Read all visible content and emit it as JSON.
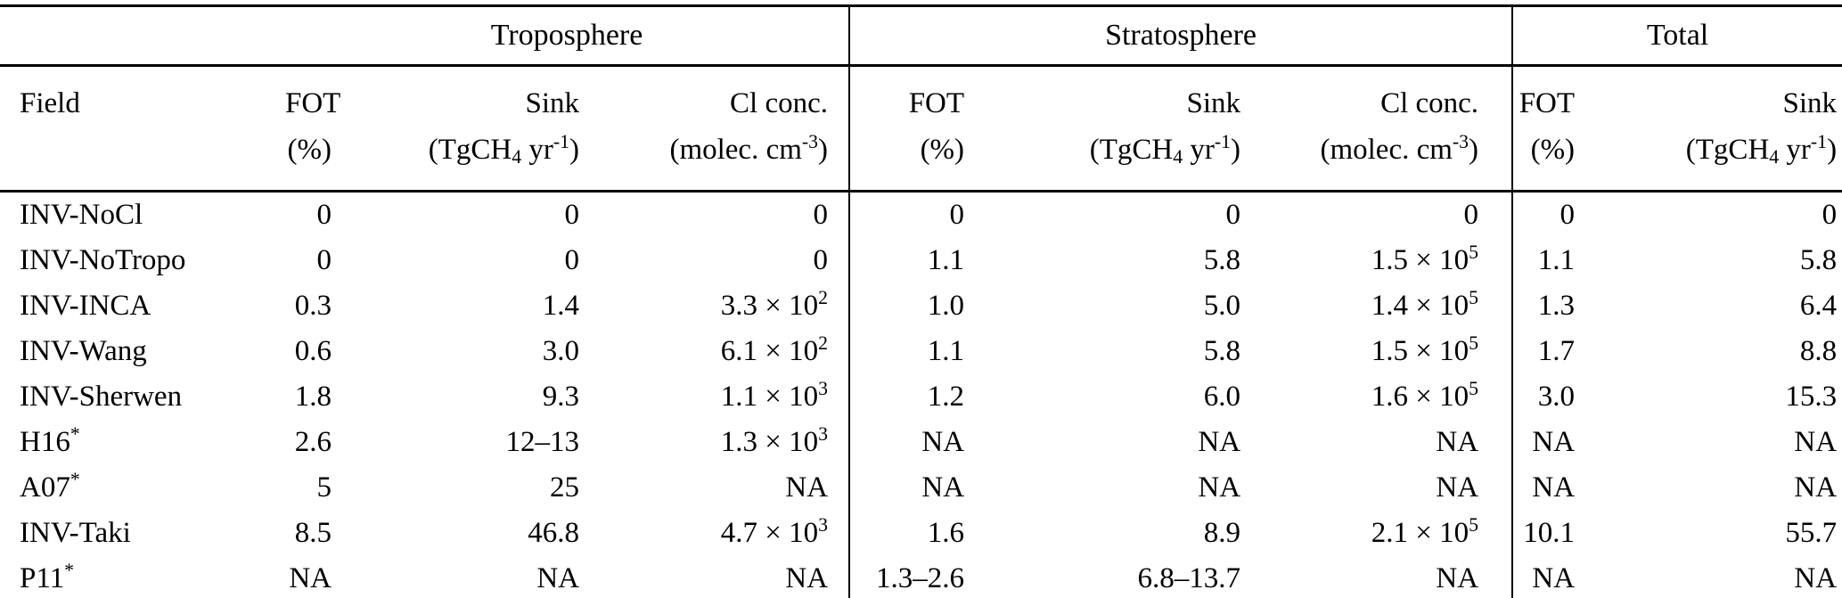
{
  "colors": {
    "background": "#ffffff",
    "text": "#000000",
    "rule": "#000000"
  },
  "table": {
    "groups": [
      {
        "label": "Troposphere",
        "span": 3
      },
      {
        "label": "Stratosphere",
        "span": 3
      },
      {
        "label": "Total",
        "span": 2
      }
    ],
    "columns": [
      {
        "label": "Field",
        "unit": ""
      },
      {
        "label": "FOT",
        "unit": "(%)"
      },
      {
        "label": "Sink",
        "unit": "(TgCH_4 yr^-1)"
      },
      {
        "label": "Cl conc.",
        "unit": "(molec. cm^-3)"
      },
      {
        "label": "FOT",
        "unit": "(%)"
      },
      {
        "label": "Sink",
        "unit": "(TgCH_4 yr^-1)"
      },
      {
        "label": "Cl conc.",
        "unit": "(molec. cm^-3)"
      },
      {
        "label": "FOT",
        "unit": "(%)"
      },
      {
        "label": "Sink",
        "unit": "(TgCH_4 yr^-1)"
      }
    ],
    "rows": [
      {
        "field": "INV-NoCl",
        "values": [
          "0",
          "0",
          "0",
          "0",
          "0",
          "0",
          "0",
          "0"
        ]
      },
      {
        "field": "INV-NoTropo",
        "values": [
          "0",
          "0",
          "0",
          "1.1",
          "5.8",
          "1.5 × 10^5",
          "1.1",
          "5.8"
        ]
      },
      {
        "field": "INV-INCA",
        "values": [
          "0.3",
          "1.4",
          "3.3 × 10^2",
          "1.0",
          "5.0",
          "1.4 × 10^5",
          "1.3",
          "6.4"
        ]
      },
      {
        "field": "INV-Wang",
        "values": [
          "0.6",
          "3.0",
          "6.1 × 10^2",
          "1.1",
          "5.8",
          "1.5 × 10^5",
          "1.7",
          "8.8"
        ]
      },
      {
        "field": "INV-Sherwen",
        "values": [
          "1.8",
          "9.3",
          "1.1 × 10^3",
          "1.2",
          "6.0",
          "1.6 × 10^5",
          "3.0",
          "15.3"
        ]
      },
      {
        "field": "H16^*",
        "values": [
          "2.6",
          "12–13",
          "1.3 × 10^3",
          "NA",
          "NA",
          "NA",
          "NA",
          "NA"
        ]
      },
      {
        "field": "A07^*",
        "values": [
          "5",
          "25",
          "NA",
          "NA",
          "NA",
          "NA",
          "NA",
          "NA"
        ]
      },
      {
        "field": "INV-Taki",
        "values": [
          "8.5",
          "46.8",
          "4.7 × 10^3",
          "1.6",
          "8.9",
          "2.1 × 10^5",
          "10.1",
          "55.7"
        ]
      },
      {
        "field": "P11^*",
        "values": [
          "NA",
          "NA",
          "NA",
          "1.3–2.6",
          "6.8–13.7",
          "NA",
          "NA",
          "NA"
        ]
      }
    ]
  }
}
